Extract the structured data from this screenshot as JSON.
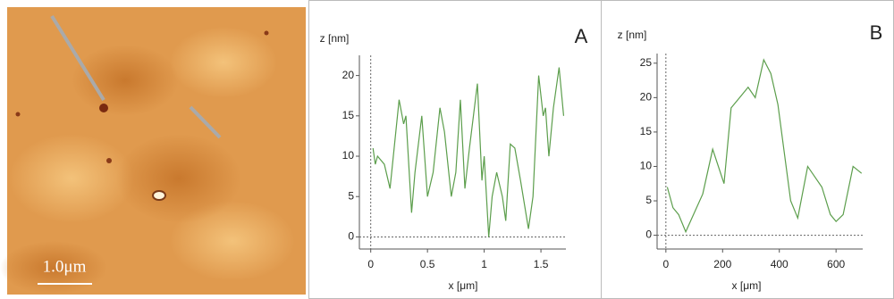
{
  "image": {
    "scale_label": "1.0μm"
  },
  "chart_data": [
    {
      "type": "line",
      "panel_label": "A",
      "y_label": "z [nm]",
      "x_label": "x [μm]",
      "xlim": [
        -0.1,
        1.72
      ],
      "ylim": [
        -1.5,
        22.5
      ],
      "xticks": [
        0,
        0.5,
        1,
        1.5
      ],
      "yticks": [
        0,
        5,
        10,
        15,
        20
      ],
      "zero_lines": true,
      "series": [
        {
          "color": "#5c9e4c",
          "x": [
            0.02,
            0.04,
            0.06,
            0.12,
            0.17,
            0.25,
            0.29,
            0.31,
            0.36,
            0.39,
            0.45,
            0.5,
            0.55,
            0.61,
            0.65,
            0.71,
            0.75,
            0.79,
            0.83,
            0.87,
            0.94,
            0.98,
            1.0,
            1.04,
            1.07,
            1.11,
            1.16,
            1.19,
            1.23,
            1.27,
            1.32,
            1.39,
            1.43,
            1.48,
            1.52,
            1.54,
            1.57,
            1.61,
            1.66,
            1.7
          ],
          "values": [
            11,
            9,
            10,
            9,
            6,
            17,
            14,
            15,
            3,
            8,
            15,
            5,
            8,
            16,
            13,
            5,
            8,
            17,
            6,
            11,
            19,
            7,
            10,
            0,
            5,
            8,
            5,
            2,
            11.5,
            11,
            7,
            1,
            5,
            20,
            15,
            16,
            10,
            16,
            21,
            15
          ]
        }
      ]
    },
    {
      "type": "line",
      "panel_label": "B",
      "y_label": "z [nm]",
      "x_label": "x [μm]",
      "xlim": [
        -31,
        694
      ],
      "ylim": [
        -2,
        26.4
      ],
      "xticks": [
        0,
        200,
        400,
        600
      ],
      "yticks": [
        0,
        5,
        10,
        15,
        20,
        25
      ],
      "zero_lines": true,
      "series": [
        {
          "color": "#5c9e4c",
          "x": [
            5,
            25,
            45,
            70,
            130,
            165,
            205,
            230,
            260,
            290,
            315,
            345,
            370,
            395,
            440,
            465,
            500,
            550,
            580,
            600,
            625,
            660,
            690
          ],
          "values": [
            7,
            4,
            3,
            0.5,
            6,
            12.5,
            7.5,
            18.5,
            20,
            21.5,
            20,
            25.5,
            23.5,
            19,
            5,
            2.5,
            10,
            7,
            3,
            2,
            3,
            10,
            9
          ]
        }
      ]
    }
  ]
}
